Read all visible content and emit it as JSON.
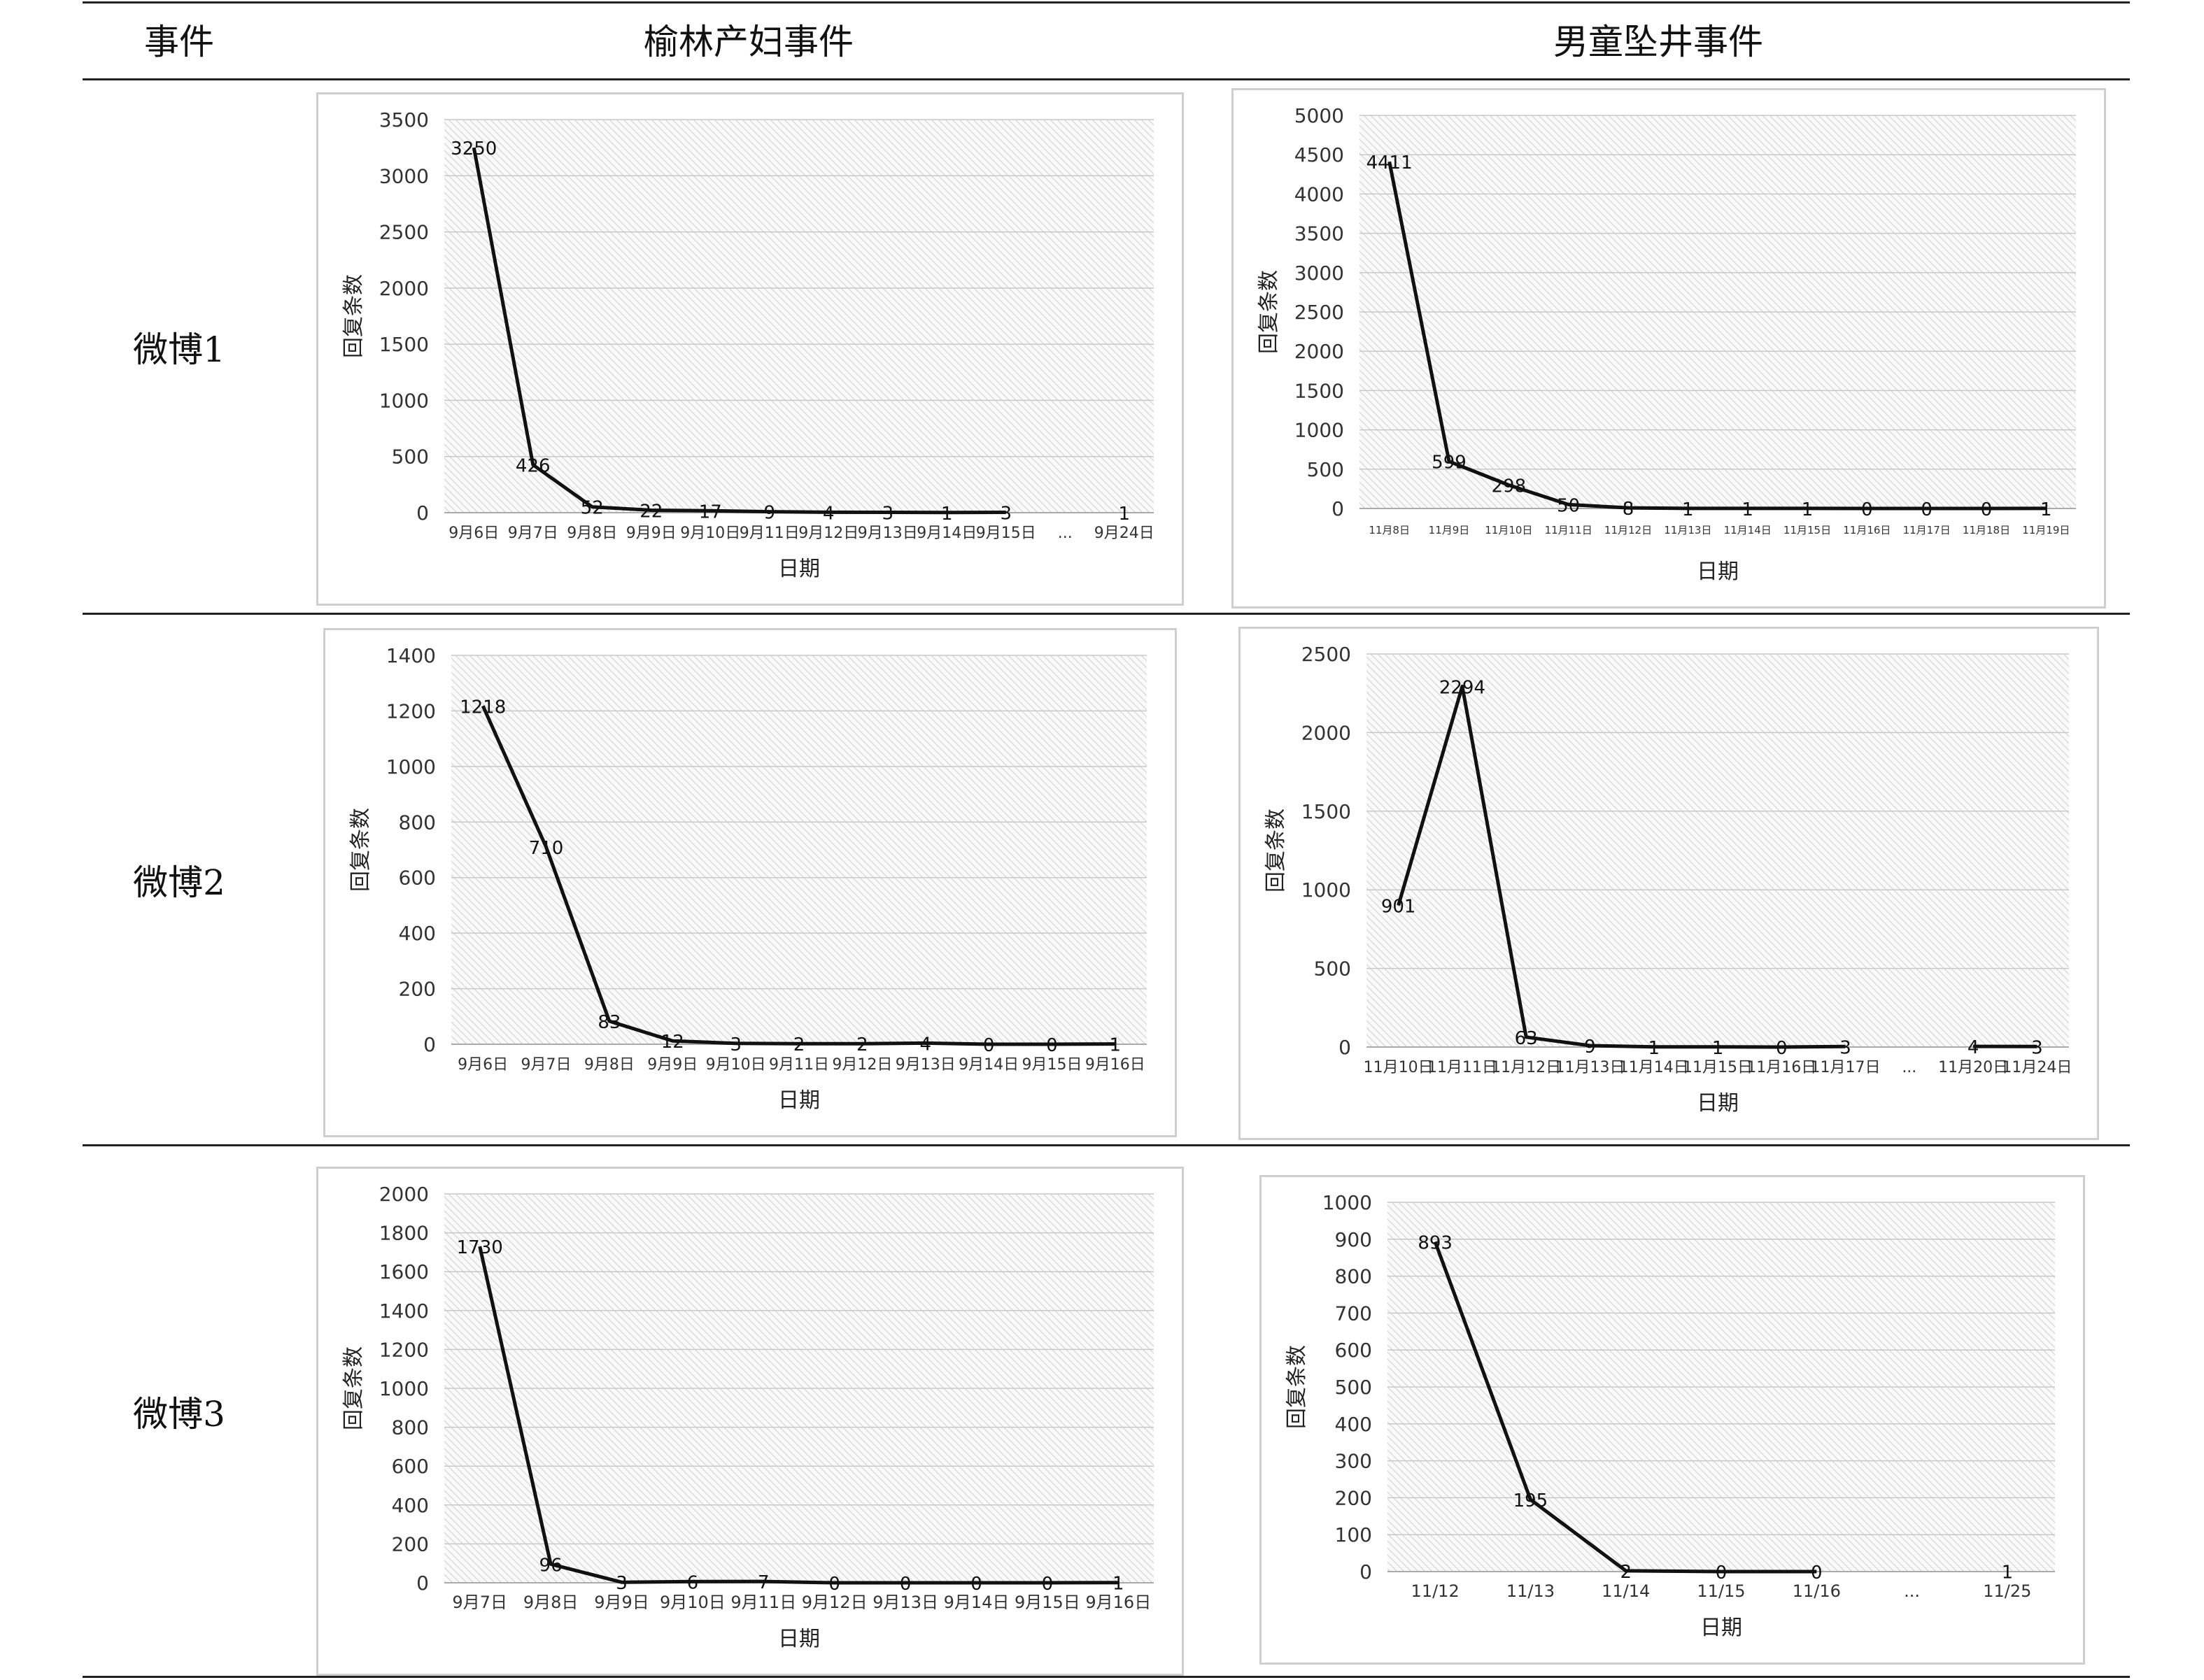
{
  "table": {
    "headers": [
      "事件",
      "榆林产妇事件",
      "男童坠井事件"
    ],
    "rows": [
      "微博1",
      "微博2",
      "微博3"
    ]
  },
  "chart_data": [
    {
      "type": "line",
      "row": "微博1",
      "column": "榆林产妇事件",
      "categories": [
        "9月6日",
        "9月7日",
        "9月8日",
        "9月9日",
        "9月10日",
        "9月11日",
        "9月12日",
        "9月13日",
        "9月14日",
        "9月15日",
        "...",
        "9月24日"
      ],
      "values": [
        3250,
        426,
        52,
        22,
        17,
        9,
        4,
        3,
        1,
        3,
        null,
        1
      ],
      "labels": [
        "3250",
        "426",
        "52",
        "22",
        "17",
        "9",
        "4",
        "3",
        "1",
        "3",
        "",
        "1"
      ],
      "xlabel": "日期",
      "ylabel": "回复条数",
      "ylim": [
        0,
        3500
      ],
      "yticks": [
        "0",
        "500",
        "1000",
        "1500",
        "2000",
        "2500",
        "3000",
        "3500"
      ],
      "grid": true,
      "legend": "none"
    },
    {
      "type": "line",
      "row": "微博1",
      "column": "男童坠井事件",
      "categories": [
        "11月8日",
        "11月9日",
        "11月10日",
        "11月11日",
        "11月12日",
        "11月13日",
        "11月14日",
        "11月15日",
        "11月16日",
        "11月17日",
        "11月18日",
        "11月19日"
      ],
      "values": [
        4411,
        599,
        298,
        50,
        8,
        1,
        1,
        1,
        0,
        0,
        0,
        1
      ],
      "labels": [
        "4411",
        "599",
        "298",
        "50",
        "8",
        "1",
        "1",
        "1",
        "0",
        "0",
        "0",
        "1"
      ],
      "xlabel": "日期",
      "ylabel": "回复条数",
      "ylim": [
        0,
        5000
      ],
      "yticks": [
        "0",
        "500",
        "1000",
        "1500",
        "2000",
        "2500",
        "3000",
        "3500",
        "4000",
        "4500",
        "5000"
      ],
      "grid": true,
      "legend": "none"
    },
    {
      "type": "line",
      "row": "微博2",
      "column": "榆林产妇事件",
      "categories": [
        "9月6日",
        "9月7日",
        "9月8日",
        "9月9日",
        "9月10日",
        "9月11日",
        "9月12日",
        "9月13日",
        "9月14日",
        "9月15日",
        "9月16日"
      ],
      "values": [
        1218,
        710,
        83,
        12,
        3,
        2,
        2,
        4,
        0,
        0,
        1
      ],
      "labels": [
        "1218",
        "710",
        "83",
        "12",
        "3",
        "2",
        "2",
        "4",
        "0",
        "0",
        "1"
      ],
      "xlabel": "日期",
      "ylabel": "回复条数",
      "ylim": [
        0,
        1400
      ],
      "yticks": [
        "0",
        "200",
        "400",
        "600",
        "800",
        "1000",
        "1200",
        "1400"
      ],
      "grid": true,
      "legend": "none"
    },
    {
      "type": "line",
      "row": "微博2",
      "column": "男童坠井事件",
      "categories": [
        "11月10日",
        "11月11日",
        "11月12日",
        "11月13日",
        "11月14日",
        "11月15日",
        "11月16日",
        "11月17日",
        "...",
        "11月20日",
        "11月24日"
      ],
      "values": [
        901,
        2294,
        63,
        9,
        1,
        1,
        0,
        3,
        null,
        4,
        3
      ],
      "labels": [
        "901",
        "2294",
        "63",
        "9",
        "1",
        "1",
        "0",
        "3",
        "",
        "4",
        "3"
      ],
      "xlabel": "日期",
      "ylabel": "回复条数",
      "ylim": [
        0,
        2500
      ],
      "yticks": [
        "0",
        "500",
        "1000",
        "1500",
        "2000",
        "2500"
      ],
      "grid": true,
      "legend": "none"
    },
    {
      "type": "line",
      "row": "微博3",
      "column": "榆林产妇事件",
      "categories": [
        "9月7日",
        "9月8日",
        "9月9日",
        "9月10日",
        "9月11日",
        "9月12日",
        "9月13日",
        "9月14日",
        "9月15日",
        "9月16日"
      ],
      "values": [
        1730,
        96,
        3,
        6,
        7,
        0,
        0,
        0,
        0,
        1
      ],
      "labels": [
        "1730",
        "96",
        "3",
        "6",
        "7",
        "0",
        "0",
        "0",
        "0",
        "1"
      ],
      "xlabel": "日期",
      "ylabel": "回复条数",
      "ylim": [
        0,
        2000
      ],
      "yticks": [
        "0",
        "200",
        "400",
        "600",
        "800",
        "1000",
        "1200",
        "1400",
        "1600",
        "1800",
        "2000"
      ],
      "grid": true,
      "legend": "none"
    },
    {
      "type": "line",
      "row": "微博3",
      "column": "男童坠井事件",
      "categories": [
        "11/12",
        "11/13",
        "11/14",
        "11/15",
        "11/16",
        "...",
        "11/25"
      ],
      "values": [
        893,
        195,
        2,
        0,
        0,
        null,
        1
      ],
      "labels": [
        "893",
        "195",
        "2",
        "0",
        "0",
        "",
        "1"
      ],
      "xlabel": "日期",
      "ylabel": "回复条数",
      "ylim": [
        0,
        1000
      ],
      "yticks": [
        "0",
        "100",
        "200",
        "300",
        "400",
        "500",
        "600",
        "700",
        "800",
        "900",
        "1000"
      ],
      "grid": true,
      "legend": "none"
    }
  ]
}
